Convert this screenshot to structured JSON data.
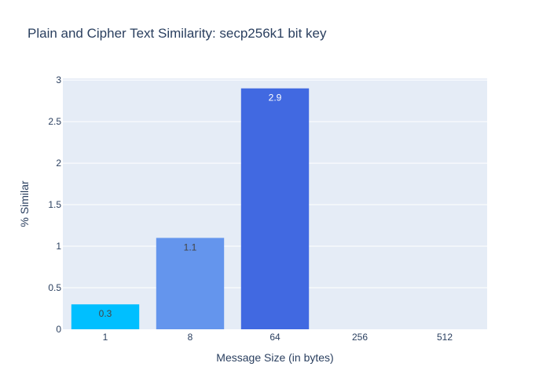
{
  "chart_data": {
    "type": "bar",
    "title": "Plain and Cipher Text Similarity: secp256k1 bit key",
    "xlabel": "Message Size (in bytes)",
    "ylabel": "% Similar",
    "categories": [
      "1",
      "8",
      "64",
      "256",
      "512"
    ],
    "values": [
      0.3,
      1.1,
      2.9,
      0,
      0
    ],
    "data_labels": [
      "0.3",
      "1.1",
      "2.9",
      "",
      ""
    ],
    "bar_colors": [
      "#00bfff",
      "#6495ed",
      "#4169e1",
      "#4169e1",
      "#4169e1"
    ],
    "label_colors": [
      "#444444",
      "#444444",
      "#ffffff",
      "#444444",
      "#444444"
    ],
    "yticks": [
      "0",
      "0.5",
      "1",
      "1.5",
      "2",
      "2.5",
      "3"
    ],
    "ylim": [
      0,
      3.02
    ],
    "grid": true,
    "plot_background": "#e5ecf6"
  }
}
